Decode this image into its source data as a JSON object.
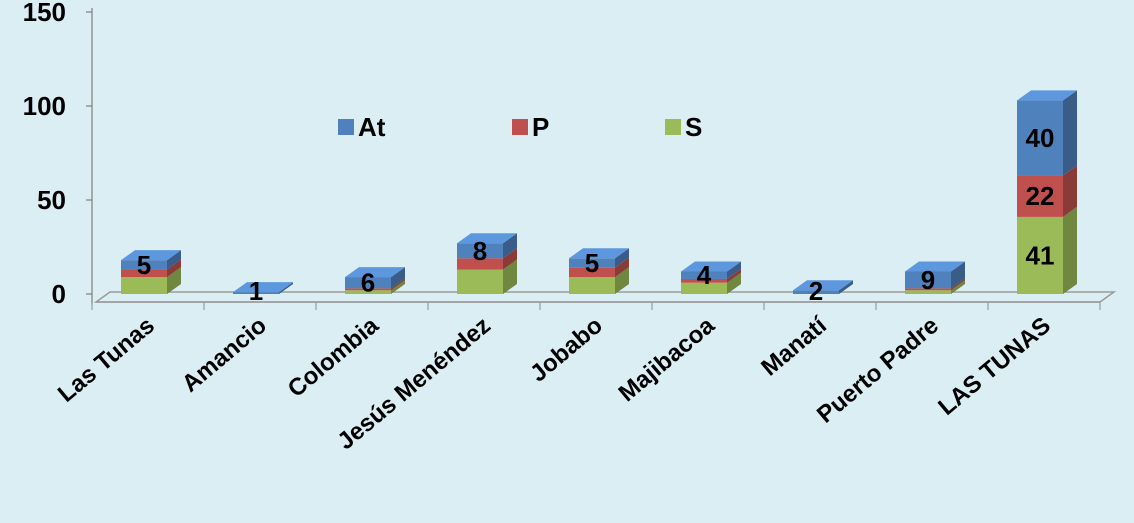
{
  "chart_data": {
    "type": "bar",
    "stacked": true,
    "style": "3d",
    "categories": [
      "Las Tunas",
      "Amancio",
      "Colombia",
      "Jesús Menéndez",
      "Jobabo",
      "Majibacoa",
      "Manatí",
      "Puerto Padre",
      "LAS TUNAS"
    ],
    "series": [
      {
        "name": "S",
        "color": "#9bbb59",
        "values": [
          9,
          0,
          2,
          13,
          9,
          6,
          0,
          2,
          41
        ]
      },
      {
        "name": "P",
        "color": "#c0504d",
        "values": [
          4,
          0,
          1,
          6,
          5,
          2,
          0,
          1,
          22
        ]
      },
      {
        "name": "At",
        "color": "#4f81bd",
        "values": [
          5,
          1,
          6,
          8,
          5,
          4,
          2,
          9,
          40
        ]
      }
    ],
    "data_labels": [
      "5",
      "1",
      "6",
      "8",
      "5",
      "4",
      "2",
      "9",
      "40",
      "22",
      "41"
    ],
    "yticks": [
      "0",
      "50",
      "100",
      "150"
    ],
    "ylim": [
      0,
      150
    ],
    "legend_order": [
      "At",
      "P",
      "S"
    ],
    "legend": "top-center"
  },
  "background_color": "#dbeef4"
}
